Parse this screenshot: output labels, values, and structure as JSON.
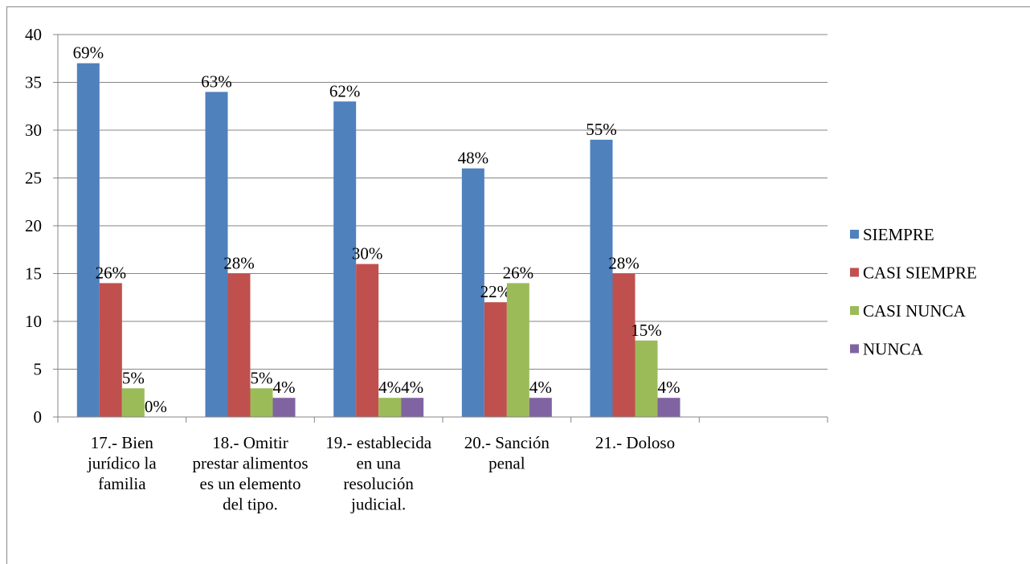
{
  "chart_data": {
    "type": "bar",
    "categories": [
      "17.- Bien jurídico la familia",
      "18.- Omitir prestar alimentos es un elemento del tipo.",
      "19.- establecida en una resolución judicial.",
      "20.- Sanción penal",
      "21.- Doloso",
      null
    ],
    "series": [
      {
        "name": "SIEMPRE",
        "color": "#4f81bd",
        "values": [
          37,
          34,
          33,
          26,
          29,
          null
        ],
        "value_labels": [
          "69%",
          "63%",
          "62%",
          "48%",
          "55%",
          null
        ]
      },
      {
        "name": "CASI SIEMPRE",
        "color": "#c0504d",
        "values": [
          14,
          15,
          16,
          12,
          15,
          null
        ],
        "value_labels": [
          "26%",
          "28%",
          "30%",
          "22%",
          "28%",
          null
        ]
      },
      {
        "name": "CASI NUNCA",
        "color": "#9bbb59",
        "values": [
          3,
          3,
          2,
          14,
          8,
          null
        ],
        "value_labels": [
          "5%",
          "5%",
          "4%",
          "26%",
          "15%",
          null
        ]
      },
      {
        "name": "NUNCA",
        "color": "#8064a2",
        "values": [
          0,
          2,
          2,
          2,
          2,
          null
        ],
        "value_labels": [
          "0%",
          "4%",
          "4%",
          "4%",
          "4%",
          null
        ]
      }
    ],
    "ylim": [
      0,
      40
    ],
    "yticks": [
      0,
      5,
      10,
      15,
      20,
      25,
      30,
      35,
      40
    ],
    "grid": true,
    "legend": "right"
  }
}
